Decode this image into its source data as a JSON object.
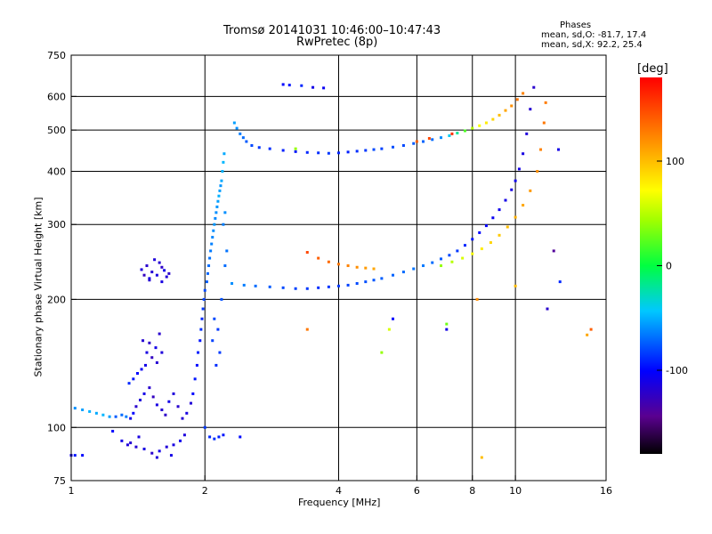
{
  "chart_data": {
    "type": "scatter",
    "title": "Tromsø 20141031 10:46:00–10:47:43",
    "subtitle": "RwPretec (8p)",
    "stats": {
      "header": "Phases",
      "o_line": "mean, sd,O: -81.7, 17.4",
      "x_line": "mean, sd,X:  92.2, 25.4"
    },
    "xlabel": "Frequency [MHz]",
    "ylabel": "Stationary phase Virtual Height [km]",
    "x_scale": "log",
    "y_scale": "log",
    "xlim": [
      1,
      16
    ],
    "ylim": [
      75,
      750
    ],
    "x_ticks": [
      1,
      2,
      4,
      6,
      8,
      10,
      16
    ],
    "y_ticks": [
      75,
      100,
      200,
      300,
      400,
      500,
      600,
      750
    ],
    "grid": true,
    "colorbar": {
      "unit": "[deg]",
      "range": [
        -180,
        180
      ],
      "ticks": [
        100,
        0,
        -100
      ]
    },
    "series": [
      {
        "points": [
          [
            1.0,
            86,
            -110
          ],
          [
            1.02,
            86,
            -95
          ],
          [
            1.06,
            86,
            -100
          ],
          [
            1.02,
            111,
            -60
          ],
          [
            1.06,
            110,
            -55
          ],
          [
            1.1,
            109,
            -50
          ],
          [
            1.14,
            108,
            -52
          ],
          [
            1.18,
            107,
            -48
          ],
          [
            1.22,
            106,
            -55
          ],
          [
            1.26,
            106,
            -75
          ],
          [
            1.3,
            107,
            -70
          ],
          [
            1.33,
            106,
            -65
          ],
          [
            1.35,
            127,
            -90
          ],
          [
            1.38,
            130,
            -95
          ],
          [
            1.41,
            134,
            -100
          ],
          [
            1.44,
            137,
            -105
          ],
          [
            1.47,
            140,
            -110
          ],
          [
            1.36,
            105,
            -110
          ],
          [
            1.38,
            108,
            -100
          ],
          [
            1.4,
            112,
            -120
          ],
          [
            1.43,
            116,
            -115
          ],
          [
            1.46,
            120,
            -110
          ],
          [
            1.5,
            124,
            -120
          ],
          [
            1.53,
            118,
            -125
          ],
          [
            1.56,
            113,
            -112
          ],
          [
            1.6,
            110,
            -118
          ],
          [
            1.63,
            107,
            -122
          ],
          [
            1.66,
            115,
            -110
          ],
          [
            1.7,
            120,
            -115
          ],
          [
            1.74,
            112,
            -120
          ],
          [
            1.78,
            105,
            -118
          ],
          [
            1.82,
            108,
            -112
          ],
          [
            1.86,
            114,
            -116
          ],
          [
            1.45,
            160,
            -118
          ],
          [
            1.5,
            158,
            -122
          ],
          [
            1.55,
            154,
            -110
          ],
          [
            1.6,
            150,
            -115
          ],
          [
            1.52,
            146,
            -125
          ],
          [
            1.56,
            142,
            -118
          ],
          [
            1.48,
            150,
            -112
          ],
          [
            1.58,
            166,
            -120
          ],
          [
            1.44,
            235,
            -115
          ],
          [
            1.48,
            240,
            -120
          ],
          [
            1.52,
            232,
            -118
          ],
          [
            1.56,
            228,
            -112
          ],
          [
            1.6,
            238,
            -122
          ],
          [
            1.64,
            226,
            -116
          ],
          [
            1.5,
            224,
            -110
          ],
          [
            1.58,
            244,
            -118
          ],
          [
            1.46,
            228,
            -125
          ],
          [
            1.62,
            234,
            -110
          ],
          [
            1.54,
            248,
            -115
          ],
          [
            1.66,
            230,
            -120
          ],
          [
            1.5,
            222,
            -118
          ],
          [
            1.6,
            220,
            -112
          ],
          [
            1.3,
            93,
            -110
          ],
          [
            1.34,
            91,
            -115
          ],
          [
            1.4,
            90,
            -118
          ],
          [
            1.46,
            89,
            -112
          ],
          [
            1.52,
            87,
            -120
          ],
          [
            1.58,
            88,
            -110
          ],
          [
            1.64,
            90,
            -116
          ],
          [
            1.7,
            91,
            -112
          ],
          [
            1.76,
            93,
            -108
          ],
          [
            1.8,
            96,
            -114
          ],
          [
            1.24,
            98,
            -100
          ],
          [
            1.42,
            95,
            -112
          ],
          [
            1.36,
            92,
            -118
          ],
          [
            1.56,
            85,
            -115
          ],
          [
            1.68,
            86,
            -110
          ],
          [
            1.88,
            120,
            -100
          ],
          [
            1.9,
            130,
            -95
          ],
          [
            1.92,
            140,
            -98
          ],
          [
            1.93,
            150,
            -92
          ],
          [
            1.95,
            160,
            -95
          ],
          [
            1.96,
            170,
            -88
          ],
          [
            1.97,
            180,
            -90
          ],
          [
            1.98,
            190,
            -85
          ],
          [
            1.99,
            200,
            -82
          ],
          [
            2.0,
            210,
            -80
          ],
          [
            2.02,
            220,
            -75
          ],
          [
            2.03,
            230,
            -72
          ],
          [
            2.04,
            240,
            -70
          ],
          [
            2.05,
            250,
            -68
          ],
          [
            2.06,
            260,
            -66
          ],
          [
            2.07,
            270,
            -64
          ],
          [
            2.08,
            280,
            -62
          ],
          [
            2.09,
            290,
            -60
          ],
          [
            2.1,
            300,
            -58
          ],
          [
            2.11,
            310,
            -62
          ],
          [
            2.12,
            320,
            -60
          ],
          [
            2.13,
            330,
            -58
          ],
          [
            2.14,
            340,
            -55
          ],
          [
            2.15,
            350,
            -50
          ],
          [
            2.16,
            360,
            -55
          ],
          [
            2.17,
            370,
            -58
          ],
          [
            2.18,
            380,
            -52
          ],
          [
            2.19,
            400,
            -50
          ],
          [
            2.2,
            420,
            -48
          ],
          [
            2.21,
            440,
            -52
          ],
          [
            2.1,
            180,
            -80
          ],
          [
            2.14,
            170,
            -85
          ],
          [
            2.08,
            160,
            -82
          ],
          [
            2.16,
            150,
            -84
          ],
          [
            2.12,
            140,
            -88
          ],
          [
            2.18,
            200,
            -78
          ],
          [
            2.22,
            240,
            -70
          ],
          [
            2.24,
            260,
            -68
          ],
          [
            2.2,
            300,
            -65
          ],
          [
            2.22,
            320,
            -60
          ],
          [
            2.0,
            100,
            -85
          ],
          [
            2.05,
            95,
            -90
          ],
          [
            2.1,
            94,
            -88
          ],
          [
            2.15,
            95,
            -92
          ],
          [
            2.2,
            96,
            -95
          ],
          [
            2.4,
            95,
            -98
          ],
          [
            2.33,
            520,
            -55
          ],
          [
            2.36,
            505,
            -60
          ],
          [
            2.4,
            490,
            -65
          ],
          [
            2.44,
            480,
            -70
          ],
          [
            2.48,
            470,
            -75
          ],
          [
            2.55,
            460,
            -80
          ],
          [
            2.65,
            455,
            -85
          ],
          [
            2.8,
            452,
            -88
          ],
          [
            3.0,
            448,
            -92
          ],
          [
            3.2,
            445,
            -95
          ],
          [
            3.4,
            443,
            -90
          ],
          [
            3.6,
            442,
            -88
          ],
          [
            3.8,
            441,
            -85
          ],
          [
            4.0,
            442,
            -90
          ],
          [
            4.2,
            444,
            -92
          ],
          [
            4.4,
            446,
            -88
          ],
          [
            4.6,
            448,
            -85
          ],
          [
            4.8,
            450,
            -80
          ],
          [
            5.0,
            452,
            -82
          ],
          [
            5.3,
            456,
            -78
          ],
          [
            5.6,
            460,
            -80
          ],
          [
            5.9,
            465,
            -75
          ],
          [
            6.2,
            470,
            -72
          ],
          [
            6.5,
            475,
            -70
          ],
          [
            6.8,
            480,
            -60
          ],
          [
            7.1,
            485,
            -40
          ],
          [
            7.4,
            492,
            -20
          ],
          [
            7.7,
            498,
            20
          ],
          [
            8.0,
            505,
            50
          ],
          [
            8.3,
            512,
            70
          ],
          [
            8.6,
            520,
            80
          ],
          [
            8.9,
            530,
            90
          ],
          [
            9.2,
            542,
            100
          ],
          [
            9.5,
            556,
            110
          ],
          [
            9.8,
            570,
            120
          ],
          [
            10.1,
            590,
            130
          ],
          [
            10.4,
            610,
            125
          ],
          [
            6.0,
            470,
            140
          ],
          [
            6.4,
            478,
            150
          ],
          [
            7.2,
            490,
            160
          ],
          [
            3.2,
            452,
            40
          ],
          [
            2.3,
            218,
            -60
          ],
          [
            2.45,
            216,
            -65
          ],
          [
            2.6,
            215,
            -70
          ],
          [
            2.8,
            214,
            -75
          ],
          [
            3.0,
            213,
            -80
          ],
          [
            3.2,
            212,
            -82
          ],
          [
            3.4,
            212,
            -85
          ],
          [
            3.6,
            213,
            -88
          ],
          [
            3.8,
            214,
            -86
          ],
          [
            4.0,
            215,
            -84
          ],
          [
            4.2,
            216,
            -82
          ],
          [
            4.4,
            218,
            -80
          ],
          [
            4.6,
            220,
            -78
          ],
          [
            4.8,
            222,
            -76
          ],
          [
            5.0,
            224,
            -74
          ],
          [
            5.3,
            228,
            -72
          ],
          [
            5.6,
            232,
            -70
          ],
          [
            5.9,
            236,
            -68
          ],
          [
            6.2,
            240,
            -66
          ],
          [
            6.5,
            244,
            -70
          ],
          [
            6.8,
            249,
            -75
          ],
          [
            7.1,
            254,
            -80
          ],
          [
            7.4,
            260,
            -85
          ],
          [
            7.7,
            268,
            -90
          ],
          [
            8.0,
            277,
            -95
          ],
          [
            8.3,
            287,
            -100
          ],
          [
            8.6,
            298,
            -102
          ],
          [
            8.9,
            311,
            -105
          ],
          [
            9.2,
            325,
            -108
          ],
          [
            9.5,
            342,
            -110
          ],
          [
            9.8,
            362,
            -112
          ],
          [
            10.0,
            380,
            -108
          ],
          [
            10.2,
            405,
            -110
          ],
          [
            10.4,
            440,
            -112
          ],
          [
            10.6,
            490,
            -115
          ],
          [
            10.8,
            560,
            -118
          ],
          [
            11.0,
            630,
            -120
          ],
          [
            3.4,
            258,
            150
          ],
          [
            3.6,
            250,
            140
          ],
          [
            3.8,
            245,
            135
          ],
          [
            4.0,
            242,
            130
          ],
          [
            4.2,
            240,
            125
          ],
          [
            4.4,
            238,
            120
          ],
          [
            4.6,
            237,
            115
          ],
          [
            4.8,
            236,
            110
          ],
          [
            6.8,
            240,
            40
          ],
          [
            7.2,
            245,
            50
          ],
          [
            7.6,
            250,
            60
          ],
          [
            8.0,
            256,
            70
          ],
          [
            8.4,
            263,
            80
          ],
          [
            8.8,
            272,
            90
          ],
          [
            9.2,
            283,
            95
          ],
          [
            9.6,
            296,
            100
          ],
          [
            10.0,
            312,
            105
          ],
          [
            10.4,
            333,
            110
          ],
          [
            10.8,
            360,
            115
          ],
          [
            11.2,
            400,
            120
          ],
          [
            11.4,
            450,
            125
          ],
          [
            11.6,
            520,
            130
          ],
          [
            11.7,
            580,
            128
          ],
          [
            3.0,
            640,
            -100
          ],
          [
            3.1,
            638,
            -95
          ],
          [
            3.3,
            636,
            -90
          ],
          [
            3.5,
            630,
            -110
          ],
          [
            3.7,
            628,
            -105
          ],
          [
            5.3,
            180,
            -100
          ],
          [
            5.2,
            170,
            60
          ],
          [
            7.0,
            170,
            -110
          ],
          [
            7.0,
            175,
            30
          ],
          [
            11.8,
            190,
            -120
          ],
          [
            12.2,
            260,
            -140
          ],
          [
            12.6,
            220,
            -90
          ],
          [
            14.5,
            165,
            110
          ],
          [
            12.5,
            450,
            -110
          ],
          [
            14.8,
            170,
            140
          ],
          [
            3.4,
            170,
            130
          ],
          [
            5.0,
            150,
            40
          ],
          [
            8.4,
            85,
            100
          ],
          [
            8.2,
            200,
            120
          ],
          [
            10.0,
            215,
            100
          ]
        ]
      }
    ]
  }
}
